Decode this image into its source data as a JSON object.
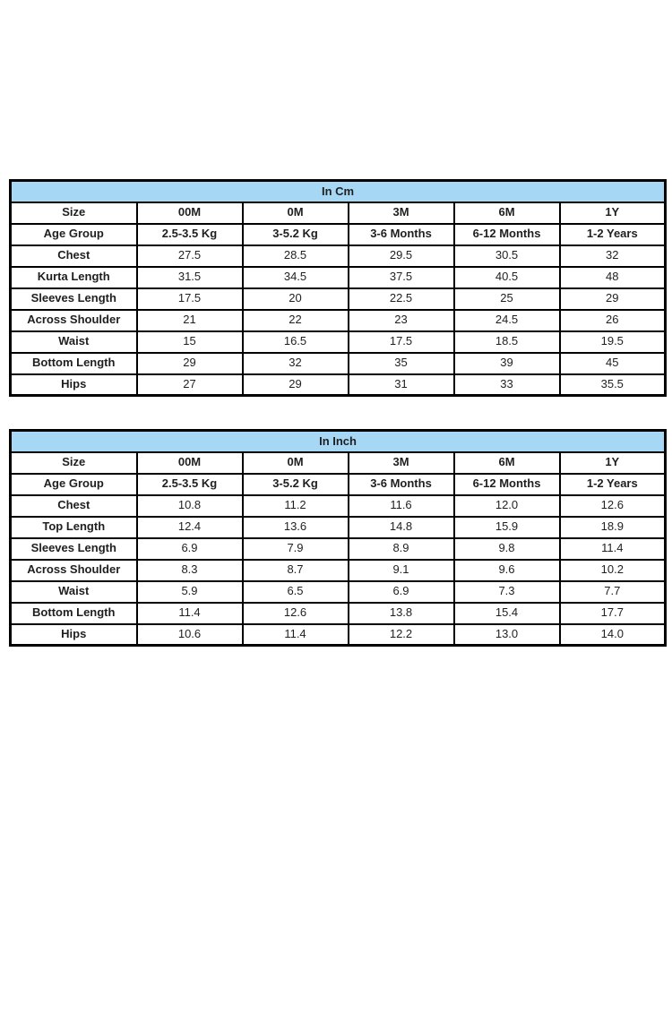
{
  "page": {
    "background_color": "#ffffff",
    "border_color": "#000000",
    "accent_color": "#A6D8F5"
  },
  "chart_data": [
    {
      "type": "table",
      "title": "In Cm",
      "header_rows": [
        [
          "Size",
          "00M",
          "0M",
          "3M",
          "6M",
          "1Y"
        ],
        [
          "Age Group",
          "2.5-3.5 Kg",
          "3-5.2 Kg",
          "3-6 Months",
          "6-12 Months",
          "1-2 Years"
        ]
      ],
      "rows": [
        [
          "Chest",
          "27.5",
          "28.5",
          "29.5",
          "30.5",
          "32"
        ],
        [
          "Kurta Length",
          "31.5",
          "34.5",
          "37.5",
          "40.5",
          "48"
        ],
        [
          "Sleeves Length",
          "17.5",
          "20",
          "22.5",
          "25",
          "29"
        ],
        [
          "Across Shoulder",
          "21",
          "22",
          "23",
          "24.5",
          "26"
        ],
        [
          "Waist",
          "15",
          "16.5",
          "17.5",
          "18.5",
          "19.5"
        ],
        [
          "Bottom Length",
          "29",
          "32",
          "35",
          "39",
          "45"
        ],
        [
          "Hips",
          "27",
          "29",
          "31",
          "33",
          "35.5"
        ]
      ]
    },
    {
      "type": "table",
      "title": "In Inch",
      "header_rows": [
        [
          "Size",
          "00M",
          "0M",
          "3M",
          "6M",
          "1Y"
        ],
        [
          "Age Group",
          "2.5-3.5 Kg",
          "3-5.2 Kg",
          "3-6 Months",
          "6-12 Months",
          "1-2 Years"
        ]
      ],
      "rows": [
        [
          "Chest",
          "10.8",
          "11.2",
          "11.6",
          "12.0",
          "12.6"
        ],
        [
          "Top Length",
          "12.4",
          "13.6",
          "14.8",
          "15.9",
          "18.9"
        ],
        [
          "Sleeves Length",
          "6.9",
          "7.9",
          "8.9",
          "9.8",
          "11.4"
        ],
        [
          "Across Shoulder",
          "8.3",
          "8.7",
          "9.1",
          "9.6",
          "10.2"
        ],
        [
          "Waist",
          "5.9",
          "6.5",
          "6.9",
          "7.3",
          "7.7"
        ],
        [
          "Bottom Length",
          "11.4",
          "12.6",
          "13.8",
          "15.4",
          "17.7"
        ],
        [
          "Hips",
          "10.6",
          "11.4",
          "12.2",
          "13.0",
          "14.0"
        ]
      ]
    }
  ]
}
